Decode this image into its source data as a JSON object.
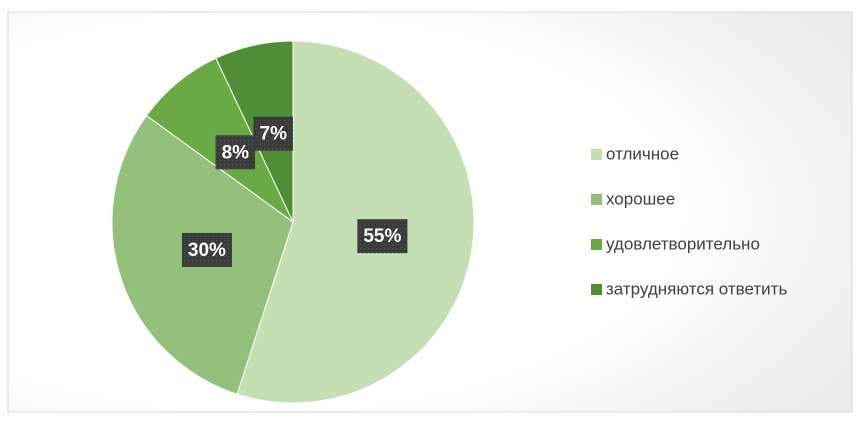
{
  "chart_data": {
    "type": "pie",
    "categories": [
      "отличное",
      "хорошее",
      "удовлетворительно",
      "затрудняются ответить"
    ],
    "values": [
      55,
      30,
      8,
      7
    ],
    "value_labels": [
      "55%",
      "30%",
      "8%",
      "7%"
    ],
    "colors": [
      "#c3dfb3",
      "#93c17c",
      "#6aaa45",
      "#4f8d36"
    ],
    "legend": "right"
  }
}
